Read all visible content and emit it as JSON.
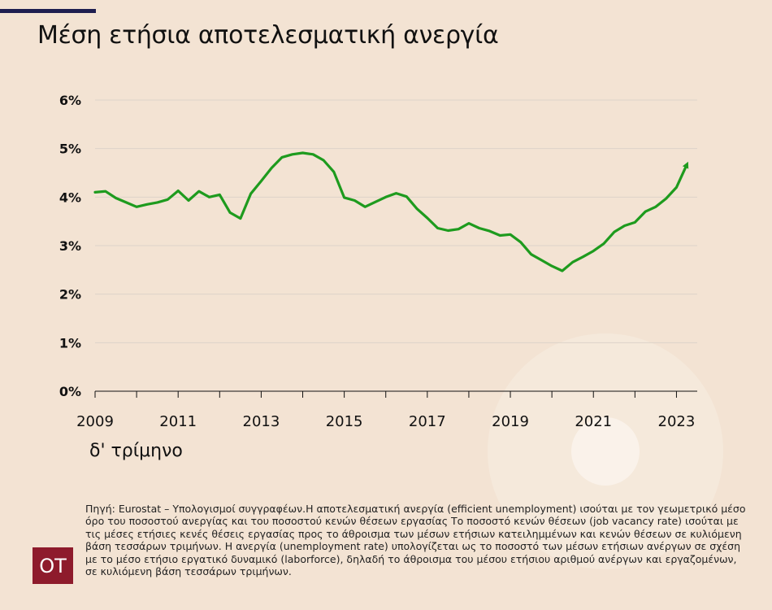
{
  "header": {
    "title": "Μέση ετήσια αποτελεσματική ανεργία"
  },
  "chart_data": {
    "type": "line",
    "title": "Μέση ετήσια αποτελεσματική ανεργία",
    "xlabel": "δ' τρίμηνο",
    "ylabel": "",
    "xlim": [
      2009,
      2023.5
    ],
    "ylim": [
      0,
      6
    ],
    "x_ticks": [
      "2009",
      "2011",
      "2013",
      "2015",
      "2017",
      "2019",
      "2021",
      "2023"
    ],
    "y_ticks": [
      "0%",
      "1%",
      "2%",
      "3%",
      "4%",
      "5%",
      "6%"
    ],
    "grid": true,
    "line_color": "#1e9b1e",
    "x": [
      2009.0,
      2009.25,
      2009.5,
      2009.75,
      2010.0,
      2010.25,
      2010.5,
      2010.75,
      2011.0,
      2011.25,
      2011.5,
      2011.75,
      2012.0,
      2012.25,
      2012.5,
      2012.75,
      2013.0,
      2013.25,
      2013.5,
      2013.75,
      2014.0,
      2014.25,
      2014.5,
      2014.75,
      2015.0,
      2015.25,
      2015.5,
      2015.75,
      2016.0,
      2016.25,
      2016.5,
      2016.75,
      2017.0,
      2017.25,
      2017.5,
      2017.75,
      2018.0,
      2018.25,
      2018.5,
      2018.75,
      2019.0,
      2019.25,
      2019.5,
      2019.75,
      2020.0,
      2020.25,
      2020.5,
      2020.75,
      2021.0,
      2021.25,
      2021.5,
      2021.75,
      2022.0,
      2022.25,
      2022.5,
      2022.75,
      2023.0,
      2023.25
    ],
    "values": [
      4.1,
      4.12,
      3.98,
      3.89,
      3.8,
      3.85,
      3.89,
      3.95,
      4.13,
      3.93,
      4.12,
      4.0,
      4.05,
      3.68,
      3.56,
      4.07,
      4.33,
      4.6,
      4.82,
      4.88,
      4.91,
      4.88,
      4.76,
      4.52,
      3.99,
      3.93,
      3.8,
      3.9,
      4.0,
      4.08,
      4.01,
      3.76,
      3.57,
      3.36,
      3.31,
      3.34,
      3.46,
      3.36,
      3.3,
      3.21,
      3.23,
      3.07,
      2.82,
      2.7,
      2.58,
      2.48,
      2.66,
      2.77,
      2.89,
      3.04,
      3.28,
      3.41,
      3.48,
      3.7,
      3.8,
      3.97,
      4.2,
      4.67
    ]
  },
  "footer": {
    "source_text": "Πηγή: Eurostat – Υπολογισμοί συγγραφέων.Η αποτελεσματική ανεργία (efficient unemployment) ισούται με τον γεωμετρικό μέσο όρο του ποσοστού ανεργίας και του ποσοστού κενών θέσεων εργασίας Το ποσοστό κενών θέσεων (job vacancy rate) ισούται με τις μέσες ετήσιες κενές θέσεις εργασίας προς το άθροισμα των μέσων ετήσιων κατειλημμένων και κενών θέσεων σε κυλιόμενη βάση τεσσάρων τριμήνων. Η ανεργία (unemployment rate) υπολογίζεται ως το ποσοστό των μέσων ετήσιων ανέργων σε σχέση με το μέσο ετήσιο εργατικό δυναμικό (laborforce), δηλαδή το άθροισμα του μέσου ετήσιου αριθμού ανέργων και εργαζομένων, σε κυλιόμενη βάση τεσσάρων τριμήνων.",
    "logo_text": "OT"
  },
  "colors": {
    "background": "#f3e3d3",
    "accent_bar": "#1e1e50",
    "logo_bg": "#8e1b2c"
  }
}
